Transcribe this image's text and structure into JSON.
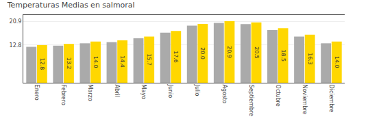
{
  "chart_data": {
    "type": "bar",
    "title": "Temperaturas Medias en salmoral",
    "categories": [
      "Enero",
      "Febrero",
      "Marzo",
      "Abril",
      "Mayo",
      "Junio",
      "Julio",
      "Agosto",
      "Septiembre",
      "Octubre",
      "Noviembre",
      "Diciembre"
    ],
    "series": [
      {
        "color": "#AAAAAA",
        "values": [
          12.2,
          12.6,
          13.4,
          13.8,
          15.1,
          17.0,
          19.4,
          20.3,
          19.9,
          17.9,
          15.7,
          13.4
        ]
      },
      {
        "color": "#FFD700",
        "values": [
          12.8,
          13.2,
          14.0,
          14.4,
          15.7,
          17.6,
          20.0,
          20.9,
          20.5,
          18.5,
          16.3,
          14.0
        ],
        "data_labels": true,
        "value_labels": [
          "12.8",
          "13.2",
          "14.0",
          "14.4",
          "15.7",
          "17.6",
          "20.0",
          "20.9",
          "20.5",
          "18.5",
          "16.3",
          "14.0"
        ]
      }
    ],
    "ylim": [
      0.0,
      23.0
    ],
    "yticks": [
      12.8,
      20.9
    ],
    "y2lim": [
      0.0,
      23.0
    ],
    "y2ticks": [
      12.8,
      20.9
    ],
    "grid": true,
    "legend": false
  }
}
